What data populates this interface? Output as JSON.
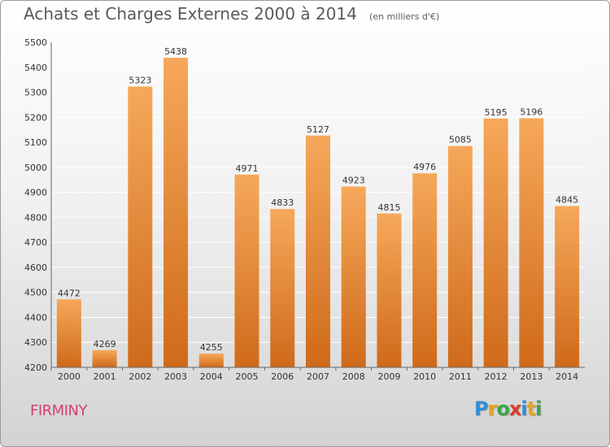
{
  "title": "Achats et Charges Externes 2000 à 2014",
  "unit_note": "(en milliers d'€)",
  "city": "FIRMINY",
  "logo": {
    "letters": [
      "P",
      "r",
      "o",
      "x",
      "i",
      "t",
      "i"
    ],
    "colors": [
      "#2f8fd6",
      "#e8a21c",
      "#3aa64a",
      "#d83b2b",
      "#2f8fd6",
      "#e8a21c",
      "#3aa64a"
    ]
  },
  "colors": {
    "bar_top": "#f6a85a",
    "bar_bottom": "#cf6a1a",
    "grid": "#ffffff"
  },
  "chart_data": {
    "type": "bar",
    "categories": [
      "2000",
      "2001",
      "2002",
      "2003",
      "2004",
      "2005",
      "2006",
      "2007",
      "2008",
      "2009",
      "2010",
      "2011",
      "2012",
      "2013",
      "2014"
    ],
    "values": [
      4472,
      4269,
      5323,
      5438,
      4255,
      4971,
      4833,
      5127,
      4923,
      4815,
      4976,
      5085,
      5195,
      5196,
      4845
    ],
    "ylim": [
      4200,
      5500
    ],
    "yticks": [
      4200,
      4300,
      4400,
      4500,
      4600,
      4700,
      4800,
      4900,
      5000,
      5100,
      5200,
      5300,
      5400,
      5500
    ],
    "grid": true
  }
}
